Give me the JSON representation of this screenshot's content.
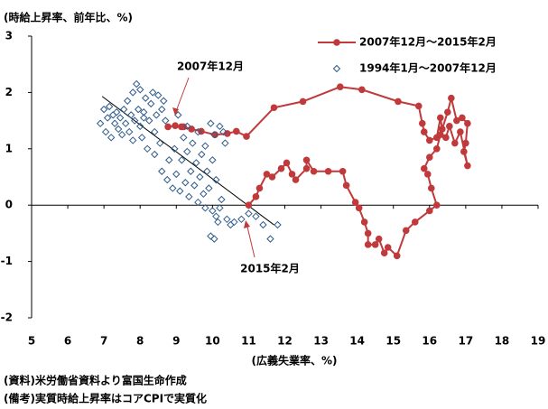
{
  "chart_data": {
    "type": "scatter",
    "y_axis_label": "(時給上昇率、前年比、%)",
    "x_axis_label": "(広義失業率、%)",
    "notes": [
      "(資料)米労働省資料より富国生命作成",
      "(備考)実質時給上昇率はコアCPIで実質化"
    ],
    "annotations": [
      "2007年12月",
      "2015年2月"
    ],
    "xlim": [
      5,
      19
    ],
    "xticks": [
      5,
      6,
      7,
      8,
      9,
      10,
      11,
      12,
      13,
      14,
      15,
      16,
      17,
      18,
      19
    ],
    "ylim": [
      -2,
      3
    ],
    "yticks": [
      -2,
      -1,
      0,
      1,
      2,
      3
    ],
    "legend": "upper right",
    "series": [
      {
        "name": "2007年12月～2015年2月",
        "color": "#c0393b",
        "style": "line-marker",
        "x": [
          8.77,
          8.97,
          9.14,
          9.2,
          9.42,
          9.69,
          10.07,
          10.41,
          10.66,
          10.94,
          11.7,
          12.5,
          13.53,
          14.13,
          15.13,
          15.7,
          15.8,
          15.85,
          16.0,
          16.2,
          16.3,
          16.35,
          16.5,
          16.6,
          16.75,
          16.9,
          17.05,
          17.0,
          16.95,
          17.05,
          16.85,
          16.7,
          16.55,
          16.45,
          16.3,
          16.2,
          16.0,
          15.85,
          15.95,
          16.05,
          16.2,
          16.0,
          15.6,
          15.35,
          15.1,
          14.85,
          14.75,
          14.6,
          14.5,
          14.3,
          14.3,
          14.2,
          14.05,
          13.95,
          13.7,
          13.6,
          13.2,
          12.8,
          12.6,
          12.6,
          12.3,
          12.2,
          12.05,
          11.9,
          11.65,
          11.5,
          11.3,
          11.2,
          11.0
        ],
        "values": [
          1.39,
          1.41,
          1.39,
          1.39,
          1.35,
          1.31,
          1.25,
          1.27,
          1.31,
          1.22,
          1.73,
          1.84,
          2.1,
          2.05,
          1.84,
          1.76,
          1.45,
          1.3,
          1.15,
          1.2,
          1.55,
          1.35,
          1.65,
          1.9,
          1.5,
          1.55,
          1.45,
          1.1,
          0.95,
          0.7,
          1.3,
          1.1,
          1.4,
          1.2,
          1.25,
          1.0,
          0.85,
          0.65,
          0.55,
          0.3,
          0.0,
          -0.1,
          -0.3,
          -0.45,
          -0.9,
          -0.75,
          -0.85,
          -0.6,
          -0.7,
          -0.7,
          -0.5,
          -0.3,
          -0.05,
          0.05,
          0.35,
          0.6,
          0.6,
          0.6,
          0.8,
          0.65,
          0.45,
          0.55,
          0.75,
          0.65,
          0.5,
          0.55,
          0.3,
          0.15,
          0.0
        ]
      },
      {
        "name": "1994年1月～2007年12月",
        "color": "#2e5c8a",
        "style": "marker",
        "x": [
          6.9,
          7.0,
          7.05,
          7.1,
          7.15,
          7.2,
          7.25,
          7.3,
          7.35,
          7.4,
          7.45,
          7.5,
          7.55,
          7.6,
          7.65,
          7.7,
          7.75,
          7.8,
          7.85,
          7.9,
          7.95,
          8.0,
          8.0,
          8.05,
          8.1,
          8.15,
          8.2,
          8.25,
          8.3,
          8.35,
          8.4,
          8.45,
          8.5,
          8.55,
          8.6,
          8.65,
          8.7,
          8.4,
          8.6,
          8.75,
          8.8,
          8.9,
          8.95,
          9.0,
          9.05,
          9.1,
          9.15,
          9.2,
          9.25,
          9.3,
          9.35,
          9.4,
          9.45,
          9.5,
          9.55,
          9.6,
          9.65,
          9.7,
          9.75,
          9.8,
          9.85,
          9.9,
          9.95,
          10.0,
          10.0,
          10.05,
          10.1,
          10.15,
          10.2,
          10.25,
          10.3,
          9.95,
          10.05,
          10.1,
          10.2,
          10.4,
          10.6,
          10.8,
          10.5,
          11.2,
          11.4,
          11.6,
          11.8,
          11.0,
          7.8,
          8.1,
          9.3,
          10.35,
          9.6,
          9.8
        ],
        "values": [
          1.45,
          1.7,
          1.3,
          1.55,
          1.75,
          1.2,
          1.6,
          1.45,
          1.65,
          1.35,
          1.55,
          1.25,
          1.7,
          1.45,
          1.85,
          1.3,
          1.6,
          1.15,
          1.5,
          2.15,
          1.7,
          1.4,
          2.05,
          1.2,
          1.65,
          1.9,
          1.0,
          1.5,
          1.8,
          2.0,
          1.3,
          1.6,
          1.95,
          1.1,
          1.7,
          1.85,
          1.5,
          0.9,
          0.6,
          0.45,
          0.8,
          0.3,
          1.0,
          0.55,
          1.6,
          0.25,
          0.8,
          1.2,
          0.4,
          0.95,
          0.15,
          0.6,
          1.1,
          0.35,
          0.75,
          1.3,
          0.5,
          0.9,
          0.2,
          1.05,
          0.6,
          0.3,
          1.45,
          0.8,
          -0.1,
          1.25,
          0.45,
          -0.3,
          1.4,
          0.1,
          1.3,
          -0.55,
          -0.6,
          -0.2,
          -0.05,
          -0.25,
          -0.3,
          -0.25,
          -0.35,
          -0.2,
          -0.35,
          -0.6,
          -0.35,
          -0.15,
          2.0,
          1.55,
          1.4,
          1.1,
          0.05,
          -0.05
        ]
      }
    ],
    "trendline": {
      "color": "#000000",
      "x": [
        6.95,
        11.7
      ],
      "y": [
        1.93,
        -0.35
      ]
    }
  }
}
